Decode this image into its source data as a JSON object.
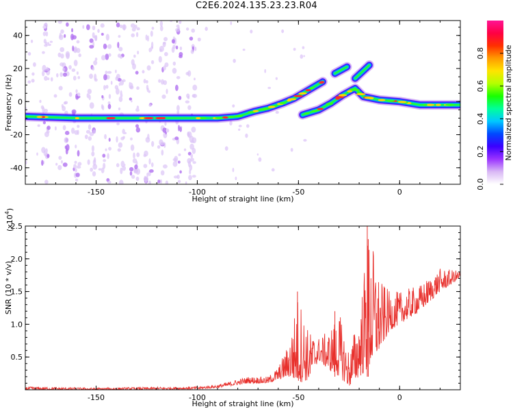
{
  "title": "C2E6.2024.135.23.23.R04",
  "chart_data": [
    {
      "type": "heatmap",
      "xlabel": "Height of straight line (km)",
      "ylabel": "Frequency (Hz)",
      "xlim": [
        -185,
        30
      ],
      "ylim": [
        -50,
        49
      ],
      "xticks": [
        -150,
        -100,
        -50,
        0
      ],
      "yticks": [
        40,
        20,
        0,
        -20,
        -40
      ],
      "colorbar": {
        "label": "Normalized spectral amplitude",
        "range": [
          0.0,
          1.0
        ],
        "ticks": [
          0.0,
          0.2,
          0.4,
          0.6,
          0.8
        ],
        "colors": [
          "#ffffff",
          "#d9b8f5",
          "#9a33ff",
          "#3b00ff",
          "#0048ff",
          "#00c8ff",
          "#00ff9a",
          "#19ff00",
          "#b4ff00",
          "#ffe400",
          "#ff9b00",
          "#ff3000",
          "#ff0044",
          "#ff1493"
        ]
      },
      "main_trace": [
        {
          "x": -185,
          "y": -9
        },
        {
          "x": -160,
          "y": -10
        },
        {
          "x": -140,
          "y": -10
        },
        {
          "x": -120,
          "y": -10
        },
        {
          "x": -100,
          "y": -10
        },
        {
          "x": -90,
          "y": -10
        },
        {
          "x": -80,
          "y": -9
        },
        {
          "x": -72,
          "y": -6
        },
        {
          "x": -65,
          "y": -4
        },
        {
          "x": -58,
          "y": -1
        },
        {
          "x": -52,
          "y": 2
        },
        {
          "x": -45,
          "y": 7
        },
        {
          "x": -38,
          "y": 12
        }
      ],
      "second_trace": [
        {
          "x": -48,
          "y": -8
        },
        {
          "x": -40,
          "y": -5
        },
        {
          "x": -34,
          "y": -1
        },
        {
          "x": -28,
          "y": 4
        },
        {
          "x": -22,
          "y": 8
        },
        {
          "x": -18,
          "y": 3
        },
        {
          "x": -10,
          "y": 1
        },
        {
          "x": 0,
          "y": 0
        },
        {
          "x": 10,
          "y": -2
        },
        {
          "x": 20,
          "y": -2
        },
        {
          "x": 30,
          "y": -2
        }
      ],
      "upper_branches": [
        [
          {
            "x": -32,
            "y": 17
          },
          {
            "x": -26,
            "y": 21
          }
        ],
        [
          {
            "x": -22,
            "y": 14
          },
          {
            "x": -15,
            "y": 22
          }
        ]
      ]
    },
    {
      "type": "line",
      "xlabel": "Height of straight line (km)",
      "ylabel": "SNR (10 * v/v)",
      "yscale_label": "(x10",
      "yscale_exponent": "4",
      "yscale_suffix": ")",
      "xlim": [
        -185,
        30
      ],
      "ylim": [
        0,
        2.5
      ],
      "xticks": [
        -150,
        -100,
        -50,
        0
      ],
      "yticks": [
        0.5,
        1.0,
        1.5,
        2.0,
        2.5
      ],
      "color": "#e8312d",
      "envelope": [
        {
          "x": -185,
          "lo": 0.0,
          "hi": 0.05
        },
        {
          "x": -150,
          "lo": 0.0,
          "hi": 0.03
        },
        {
          "x": -100,
          "lo": 0.01,
          "hi": 0.05
        },
        {
          "x": -90,
          "lo": 0.03,
          "hi": 0.08
        },
        {
          "x": -75,
          "lo": 0.1,
          "hi": 0.2
        },
        {
          "x": -65,
          "lo": 0.1,
          "hi": 0.2
        },
        {
          "x": -60,
          "lo": 0.15,
          "hi": 0.35
        },
        {
          "x": -55,
          "lo": 0.2,
          "hi": 0.7
        },
        {
          "x": -50,
          "lo": 0.1,
          "hi": 1.5
        },
        {
          "x": -45,
          "lo": 0.15,
          "hi": 0.9
        },
        {
          "x": -40,
          "lo": 0.45,
          "hi": 0.8
        },
        {
          "x": -35,
          "lo": 0.3,
          "hi": 0.9
        },
        {
          "x": -30,
          "lo": 0.2,
          "hi": 1.2
        },
        {
          "x": -25,
          "lo": 0.05,
          "hi": 0.6
        },
        {
          "x": -20,
          "lo": 0.2,
          "hi": 1.2
        },
        {
          "x": -15,
          "lo": 0.3,
          "hi": 2.5
        },
        {
          "x": -10,
          "lo": 0.6,
          "hi": 1.7
        },
        {
          "x": -5,
          "lo": 0.9,
          "hi": 1.5
        },
        {
          "x": 0,
          "lo": 1.0,
          "hi": 1.5
        },
        {
          "x": 10,
          "lo": 1.2,
          "hi": 1.6
        },
        {
          "x": 20,
          "lo": 1.5,
          "hi": 1.85
        },
        {
          "x": 30,
          "lo": 1.7,
          "hi": 1.82
        }
      ]
    }
  ]
}
